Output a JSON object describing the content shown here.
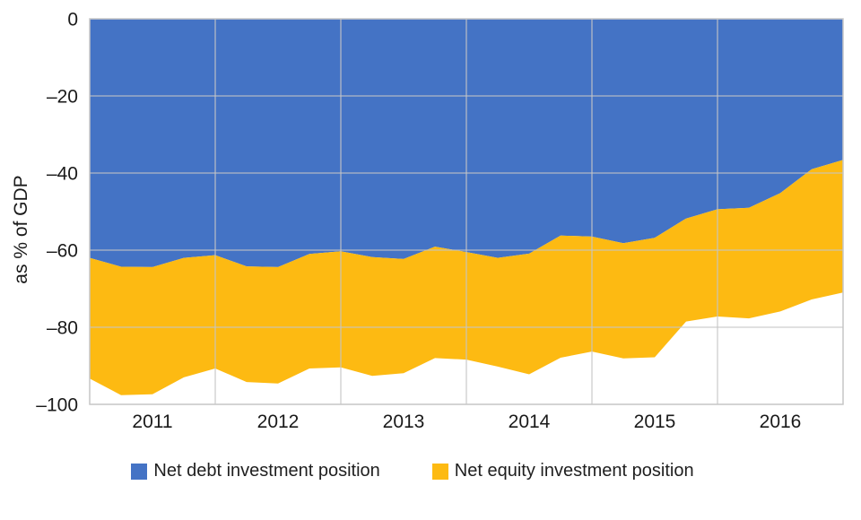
{
  "chart_data": {
    "type": "area",
    "stacked": true,
    "y_axis_title": "as % of GDP",
    "ylim": [
      0,
      -100
    ],
    "grid": "on",
    "legend_position": "bottom",
    "background_color": "#ffffff",
    "grid_color": "#c6c6c6",
    "y_ticks": [
      {
        "label": "0",
        "value": 0
      },
      {
        "label": "–20",
        "value": -20
      },
      {
        "label": "–40",
        "value": -40
      },
      {
        "label": "–60",
        "value": -60
      },
      {
        "label": "–80",
        "value": -80
      },
      {
        "label": "–100",
        "value": -100
      }
    ],
    "x_labels": [
      "2011",
      "2012",
      "2013",
      "2014",
      "2015",
      "2016"
    ],
    "x_note": "25 quarterly data points spanning the 2011–2016 year bands; values stack downward (negative % of GDP)",
    "series": [
      {
        "name": "Net debt investment position",
        "color": "#4473C5",
        "values": [
          -62.0,
          -64.3,
          -64.4,
          -62.0,
          -61.3,
          -64.2,
          -64.4,
          -61.0,
          -60.3,
          -61.8,
          -62.3,
          -59.1,
          -60.5,
          -62.0,
          -60.9,
          -56.2,
          -56.5,
          -58.2,
          -56.8,
          -51.8,
          -49.4,
          -49.0,
          -45.2,
          -39.0,
          -36.6
        ]
      },
      {
        "name": "Net equity investment position",
        "color": "#FDBA12",
        "values": [
          -31.3,
          -33.3,
          -33.0,
          -31.0,
          -29.4,
          -30.0,
          -30.2,
          -29.7,
          -30.1,
          -30.8,
          -29.6,
          -28.9,
          -27.9,
          -28.2,
          -31.3,
          -31.7,
          -29.8,
          -29.9,
          -31.0,
          -26.7,
          -27.8,
          -28.7,
          -30.7,
          -33.8,
          -34.4
        ]
      }
    ],
    "stacked_totals": [
      -93.3,
      -97.6,
      -97.4,
      -93.0,
      -90.7,
      -94.2,
      -94.6,
      -90.7,
      -90.4,
      -92.6,
      -91.9,
      -88.0,
      -88.4,
      -90.2,
      -92.2,
      -87.9,
      -86.3,
      -88.1,
      -87.8,
      -78.5,
      -77.2,
      -77.7,
      -75.9,
      -72.8,
      -71.0
    ]
  }
}
